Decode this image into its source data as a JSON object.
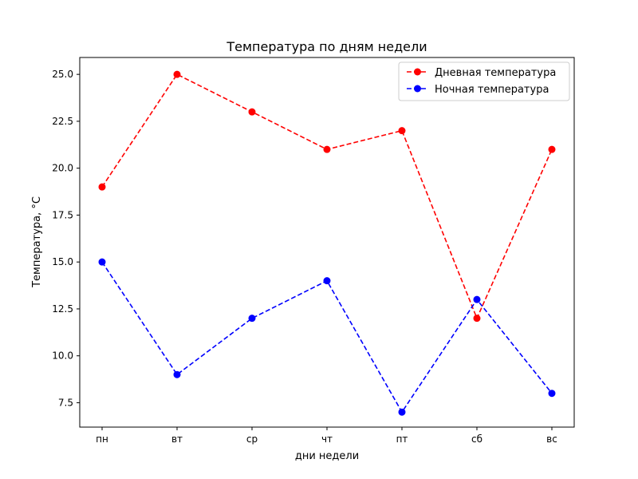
{
  "chart_data": {
    "type": "line",
    "title": "Температура по дням недели",
    "xlabel": "дни недели",
    "ylabel": "Температура, °C",
    "categories": [
      "пн",
      "вт",
      "ср",
      "чт",
      "пт",
      "сб",
      "вс"
    ],
    "ylim": [
      6.2,
      25.9
    ],
    "yticks": [
      7.5,
      10.0,
      12.5,
      15.0,
      17.5,
      20.0,
      22.5,
      25.0
    ],
    "ytick_labels": [
      "7.5",
      "10.0",
      "12.5",
      "15.0",
      "17.5",
      "20.0",
      "22.5",
      "25.0"
    ],
    "grid": false,
    "legend_position": "upper right",
    "series": [
      {
        "name": "Дневная температура",
        "values": [
          19,
          25,
          23,
          21,
          22,
          12,
          21
        ],
        "color": "#ff0000",
        "line_style": "dashed",
        "marker": "circle"
      },
      {
        "name": "Ночная температура",
        "values": [
          15,
          9,
          12,
          14,
          7,
          13,
          8
        ],
        "color": "#0000ff",
        "line_style": "dashed",
        "marker": "circle"
      }
    ]
  }
}
